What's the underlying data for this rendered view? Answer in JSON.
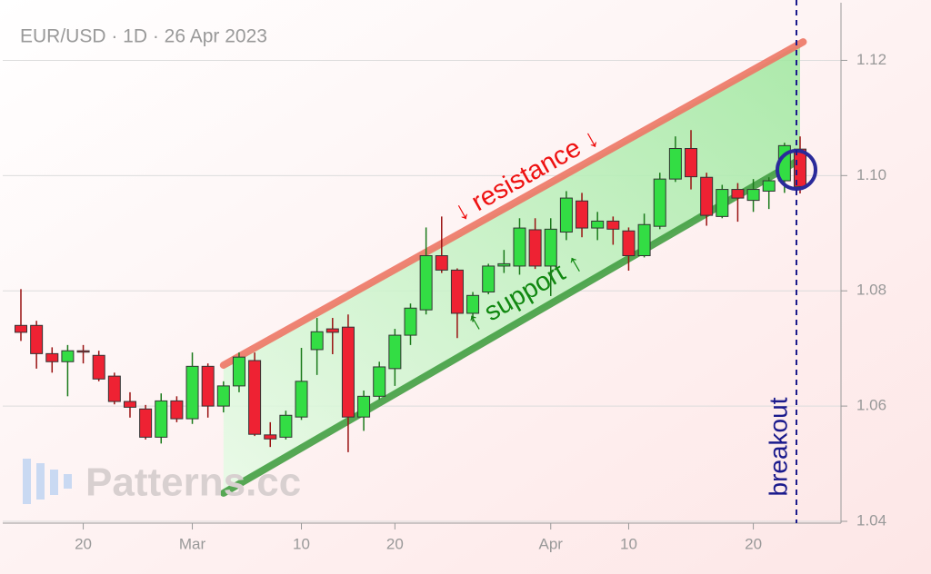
{
  "chart_data": {
    "type": "candlestick",
    "title": "EUR/USD · 1D · 26 Apr 2023",
    "watermark": "Patterns.cc",
    "categories": [
      null,
      null,
      null,
      null,
      "20",
      null,
      null,
      null,
      null,
      null,
      null,
      "Mar",
      null,
      null,
      null,
      null,
      null,
      null,
      "10",
      null,
      null,
      null,
      null,
      null,
      "20",
      null,
      null,
      null,
      null,
      null,
      null,
      null,
      null,
      null,
      "Apr",
      null,
      null,
      null,
      null,
      "10",
      null,
      null,
      null,
      null,
      null,
      null,
      null,
      "20",
      null,
      null,
      null
    ],
    "open": [
      1.074,
      1.074,
      1.0691,
      1.0677,
      1.0696,
      1.0688,
      1.0652,
      1.0608,
      1.0595,
      1.0546,
      1.0609,
      1.0578,
      1.0669,
      1.06,
      1.0635,
      1.0679,
      1.055,
      1.0546,
      1.0581,
      1.0698,
      1.0734,
      1.0737,
      1.0581,
      1.0617,
      1.0665,
      1.0723,
      1.0767,
      1.0861,
      1.0836,
      1.0761,
      1.0798,
      1.0843,
      1.0843,
      1.0906,
      1.0843,
      1.0902,
      1.0956,
      1.0909,
      1.0921,
      1.0904,
      1.0861,
      1.0912,
      1.0994,
      1.1047,
      1.0997,
      1.0929,
      1.0976,
      1.0957,
      1.0973,
      1.0991,
      1.1046
    ],
    "high": [
      1.0803,
      1.0748,
      1.0702,
      1.0706,
      1.0706,
      1.0696,
      1.0658,
      1.0624,
      1.0602,
      1.0622,
      1.0617,
      1.0693,
      1.0674,
      1.0643,
      1.0693,
      1.0693,
      1.0572,
      1.0592,
      1.0701,
      1.0753,
      1.0753,
      1.0759,
      1.0627,
      1.0677,
      1.0734,
      1.0778,
      1.091,
      1.0929,
      1.0839,
      1.0798,
      1.0847,
      1.0871,
      1.0926,
      1.0926,
      1.0926,
      1.0973,
      1.097,
      1.0937,
      1.0929,
      1.091,
      1.0934,
      1.1005,
      1.1068,
      1.1079,
      1.1005,
      1.0984,
      1.0987,
      1.0994,
      1.0997,
      1.1057,
      1.1068
    ],
    "low": [
      1.0713,
      1.0665,
      1.0658,
      1.0617,
      1.0674,
      1.0643,
      1.0603,
      1.058,
      1.0542,
      1.0535,
      1.0572,
      1.0569,
      1.058,
      1.0589,
      1.0624,
      1.0548,
      1.0529,
      1.0542,
      1.0576,
      1.0654,
      1.069,
      1.052,
      1.0557,
      1.0611,
      1.0635,
      1.0706,
      1.0759,
      1.0831,
      1.0718,
      1.0746,
      1.0794,
      1.0831,
      1.0828,
      1.0838,
      1.0791,
      1.0888,
      1.0893,
      1.0888,
      1.088,
      1.0835,
      1.0858,
      1.0907,
      1.0989,
      1.0976,
      1.0913,
      1.0926,
      1.092,
      1.0937,
      1.0942,
      1.097,
      1.0969
    ],
    "close": [
      1.0728,
      1.0691,
      1.0677,
      1.0696,
      1.0695,
      1.0647,
      1.0608,
      1.0598,
      1.0546,
      1.0609,
      1.0578,
      1.0669,
      1.06,
      1.0635,
      1.0685,
      1.0551,
      1.0543,
      1.0584,
      1.0643,
      1.0729,
      1.0728,
      1.0581,
      1.0617,
      1.0668,
      1.0723,
      1.077,
      1.0861,
      1.0836,
      1.0761,
      1.0792,
      1.0843,
      1.0847,
      1.0909,
      1.0843,
      1.0907,
      1.0961,
      1.0909,
      1.0921,
      1.0907,
      1.0861,
      1.0915,
      1.0994,
      1.1047,
      1.0998,
      1.0931,
      1.0976,
      1.0961,
      1.0976,
      1.0991,
      1.1052,
      1.0981
    ],
    "up_color": "#33dd44",
    "down_color": "#ee2233",
    "ylim": [
      1.04,
      1.13
    ],
    "yticks": [
      1.04,
      1.06,
      1.08,
      {
        "value": 1.1,
        "label": "1.10"
      },
      1.12
    ],
    "grid": true,
    "trendlines": [
      {
        "label": "↓ resistance ↓",
        "color": "#ee7766",
        "start": [
          13,
          1.0671
        ],
        "end": [
          50.2,
          1.1232
        ]
      },
      {
        "label": "↑ support ↑",
        "color": "#44a044",
        "start": [
          13,
          1.0449
        ],
        "end": [
          50,
          1.1028
        ]
      }
    ],
    "breakout": {
      "label": "breakout",
      "index": 50,
      "color": "#1a1a8c"
    }
  }
}
